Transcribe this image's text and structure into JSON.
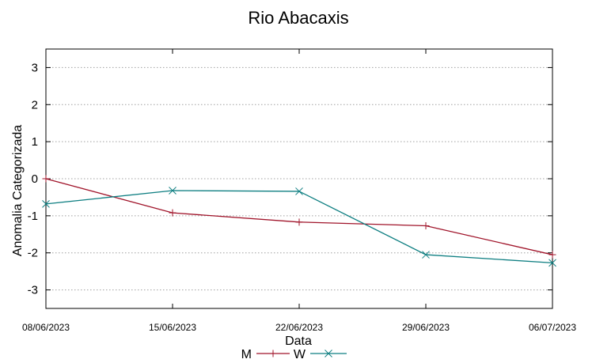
{
  "chart_data": {
    "type": "line",
    "title": "Rio Abacaxis",
    "xlabel": "Data",
    "ylabel": "Anomalia Categorizada",
    "categories": [
      "08/06/2023",
      "15/06/2023",
      "22/06/2023",
      "29/06/2023",
      "06/07/2023"
    ],
    "ylim": [
      -3.5,
      3.5
    ],
    "yticks": [
      3,
      2,
      1,
      0,
      -1,
      -2,
      -3
    ],
    "grid": true,
    "legend_position": "bottom-center",
    "series": [
      {
        "name": "M",
        "color": "#a0142a",
        "marker": "plus",
        "values": [
          0.0,
          -0.92,
          -1.17,
          -1.27,
          -2.05
        ]
      },
      {
        "name": "W",
        "color": "#0f7f82",
        "marker": "cross",
        "values": [
          -0.68,
          -0.32,
          -0.34,
          -2.05,
          -2.27
        ]
      }
    ]
  }
}
